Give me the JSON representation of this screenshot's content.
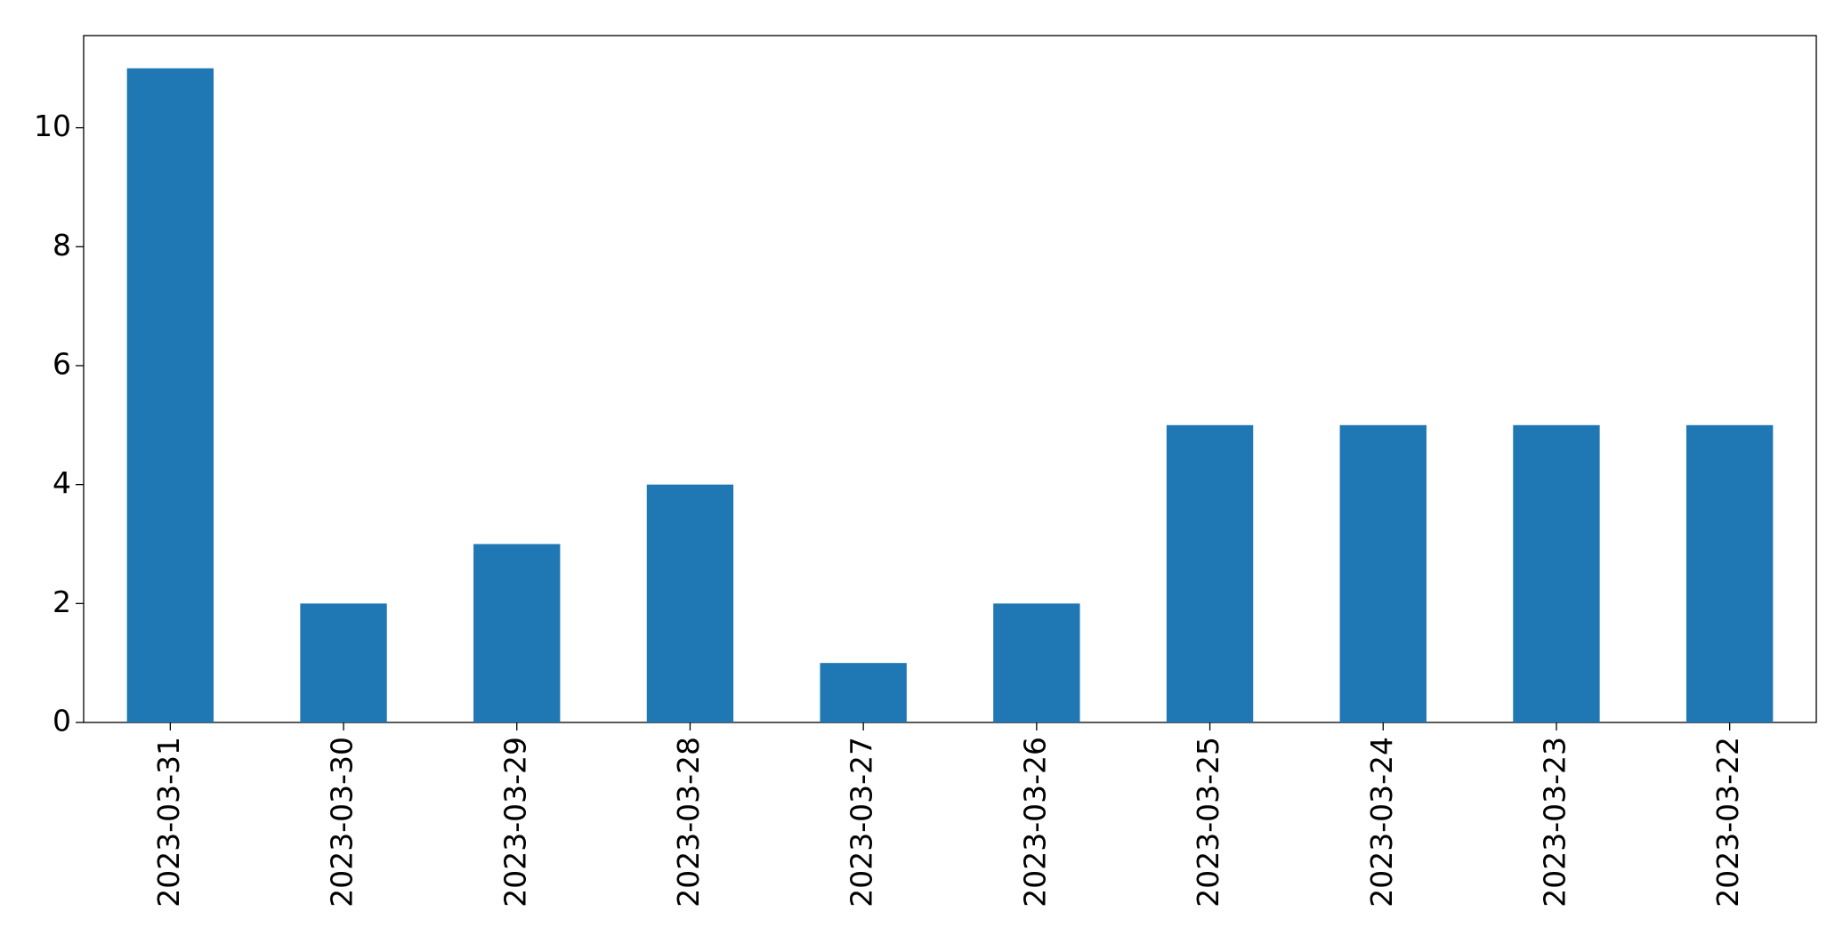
{
  "chart_data": {
    "type": "bar",
    "categories": [
      "2023-03-31",
      "2023-03-30",
      "2023-03-29",
      "2023-03-28",
      "2023-03-27",
      "2023-03-26",
      "2023-03-25",
      "2023-03-24",
      "2023-03-23",
      "2023-03-22"
    ],
    "values": [
      11,
      2,
      3,
      4,
      1,
      2,
      5,
      5,
      5,
      5
    ],
    "color": "#1f77b4",
    "ylim": [
      0,
      11.55
    ],
    "yticks": [
      0,
      2,
      4,
      6,
      8,
      10
    ],
    "grid": false
  }
}
